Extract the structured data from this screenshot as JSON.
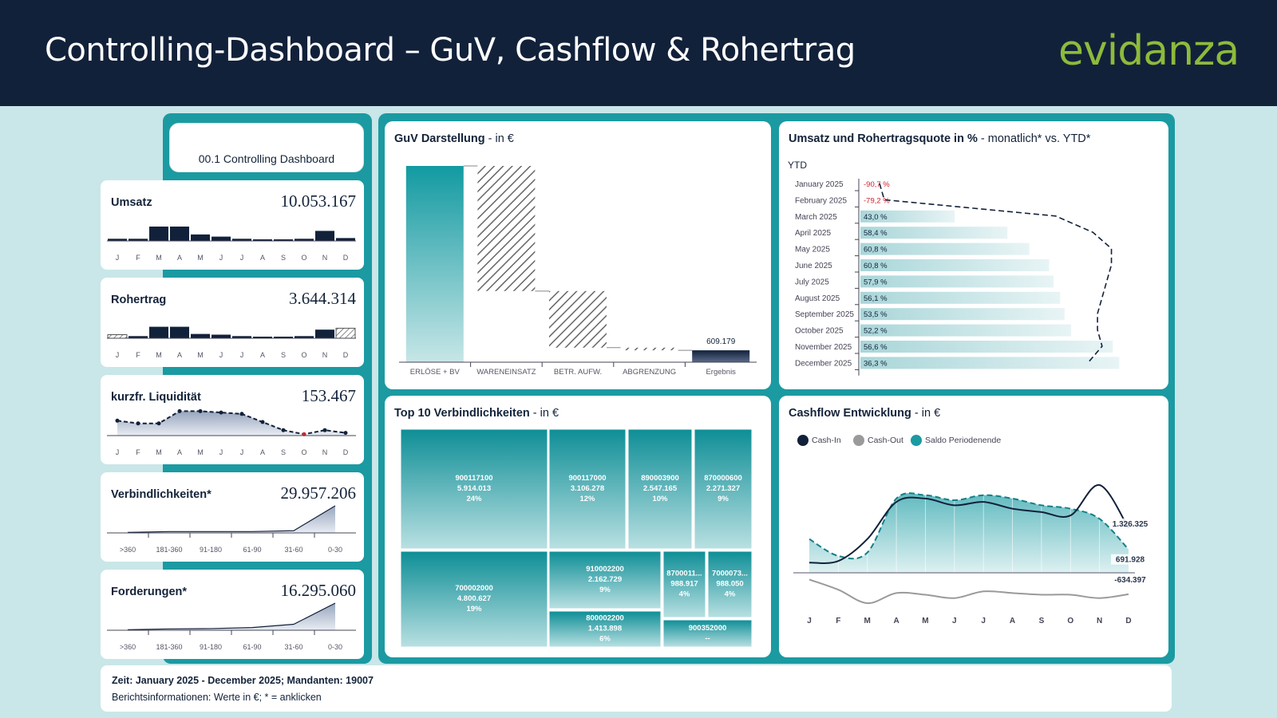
{
  "header": {
    "title": "Controlling-Dashboard – GuV, Cashflow & Rohertrag",
    "logo": "evidanza"
  },
  "nav": {
    "label": "00.1 Controlling Dashboard"
  },
  "colors": {
    "navy": "#12213a",
    "teal": "#1b9aa2",
    "teal_light": "#c9e6e8",
    "negative": "#d0222e",
    "logo_green": "#8dbb3b"
  },
  "kpis": [
    {
      "title": "Umsatz",
      "value": "10.053.167",
      "chart_data": {
        "type": "bar",
        "categories": [
          "J",
          "F",
          "M",
          "A",
          "M",
          "J",
          "J",
          "A",
          "S",
          "O",
          "N",
          "D"
        ],
        "values": [
          0.15,
          0.15,
          1,
          1,
          0.45,
          0.3,
          0.15,
          0.1,
          0.05,
          0.15,
          0.7,
          0.2
        ]
      }
    },
    {
      "title": "Rohertrag",
      "value": "3.644.314",
      "chart_data": {
        "type": "bar",
        "categories": [
          "J",
          "F",
          "M",
          "A",
          "M",
          "J",
          "J",
          "A",
          "S",
          "O",
          "N",
          "D"
        ],
        "values": [
          -0.25,
          0.15,
          0.8,
          0.8,
          0.3,
          0.25,
          0.15,
          0.1,
          0.05,
          0.15,
          0.6,
          -0.7
        ]
      }
    },
    {
      "title": "kurzfr. Liquidität",
      "value": "153.467",
      "chart_data": {
        "type": "area",
        "categories": [
          "J",
          "F",
          "M",
          "A",
          "M",
          "J",
          "J",
          "A",
          "S",
          "O",
          "N",
          "D"
        ],
        "values": [
          0.55,
          0.45,
          0.45,
          0.9,
          0.9,
          0.85,
          0.8,
          0.5,
          0.2,
          0.05,
          0.2,
          0.1
        ]
      }
    },
    {
      "title": "Verbindlichkeiten*",
      "value": "29.957.206",
      "chart_data": {
        "type": "area",
        "categories": [
          ">360",
          "181-360",
          "91-180",
          "61-90",
          "31-60",
          "0-30"
        ],
        "values": [
          0.02,
          0.05,
          0.05,
          0.05,
          0.08,
          1
        ]
      }
    },
    {
      "title": "Forderungen*",
      "value": "16.295.060",
      "chart_data": {
        "type": "area",
        "categories": [
          ">360",
          "181-360",
          "91-180",
          "61-90",
          "31-60",
          "0-30"
        ],
        "values": [
          0.02,
          0.05,
          0.06,
          0.1,
          0.22,
          1
        ]
      }
    }
  ],
  "guv": {
    "title_bold": "GuV Darstellung",
    "title_suffix": " - in €",
    "chart_data": {
      "type": "bar",
      "categories": [
        "ERLÖSE + BV",
        "WARENEINSATZ",
        "BETR. AUFW.",
        "ABGRENZUNG",
        "Ergebnis"
      ],
      "values": [
        10053167,
        -6408853,
        -2900000,
        -135135,
        609179
      ],
      "data_labels": [
        "",
        "",
        "",
        "",
        "609.179"
      ]
    }
  },
  "umsatz": {
    "title_bold": "Umsatz und Rohertragsquote in %",
    "title_suffix": " - monatlich* vs. YTD*",
    "ytd_label": "YTD",
    "chart_data": {
      "type": "bar",
      "categories": [
        "January 2025",
        "February 2025",
        "March 2025",
        "April 2025",
        "May 2025",
        "June 2025",
        "July 2025",
        "August 2025",
        "September 2025",
        "October 2025",
        "November 2025",
        "December 2025"
      ],
      "values": [
        -90.7,
        -79.2,
        43.0,
        58.4,
        60.8,
        60.8,
        57.9,
        56.1,
        53.5,
        52.2,
        56.6,
        36.3
      ],
      "value_labels": [
        "-90,7 %",
        "-79,2 %",
        "43,0 %",
        "58,4 %",
        "60,8 %",
        "60,8 %",
        "57,9 %",
        "56,1 %",
        "53,5 %",
        "52,2 %",
        "56,6 %",
        "36,3 %"
      ],
      "bar_values": [
        0,
        0,
        43.0,
        67.0,
        77.0,
        86.0,
        88.0,
        91.0,
        93.0,
        96.0,
        115.0,
        118.0
      ],
      "ytd_line": [
        2,
        10,
        40,
        48,
        52,
        52,
        51,
        50,
        49,
        49,
        50,
        47
      ]
    }
  },
  "top10": {
    "title_bold": "Top 10 Verbindlichkeiten",
    "title_suffix": " - in €",
    "chart_data": {
      "type": "treemap",
      "items": [
        {
          "id": "900117100",
          "value": "5.914.013",
          "pct": "24%"
        },
        {
          "id": "900117000",
          "value": "3.106.278",
          "pct": "12%"
        },
        {
          "id": "890003900",
          "value": "2.547.165",
          "pct": "10%"
        },
        {
          "id": "870000600",
          "value": "2.271.327",
          "pct": "9%"
        },
        {
          "id": "700002000",
          "value": "4.800.627",
          "pct": "19%"
        },
        {
          "id": "910002200",
          "value": "2.162.729",
          "pct": "9%"
        },
        {
          "id": "8700011...",
          "value": "988.917",
          "pct": "4%"
        },
        {
          "id": "7000073...",
          "value": "988.050",
          "pct": "4%"
        },
        {
          "id": "800002200",
          "value": "1.413.898",
          "pct": "6%"
        },
        {
          "id": "900352000",
          "value": "--",
          "pct": ""
        }
      ]
    }
  },
  "cashflow": {
    "title_bold": "Cashflow Entwicklung",
    "title_suffix": " - in €",
    "legend": [
      "Cash-In",
      "Cash-Out",
      "Saldo Periodenende"
    ],
    "chart_data": {
      "type": "line",
      "categories": [
        "J",
        "F",
        "M",
        "A",
        "M",
        "J",
        "J",
        "A",
        "S",
        "O",
        "N",
        "D"
      ],
      "series": [
        {
          "name": "Cash-In",
          "values": [
            300000,
            350000,
            1000000,
            2100000,
            2200000,
            2000000,
            2100000,
            1900000,
            1800000,
            1700000,
            2600000,
            1326325
          ]
        },
        {
          "name": "Cash-Out",
          "values": [
            -200000,
            -500000,
            -900000,
            -600000,
            -650000,
            -750000,
            -550000,
            -600000,
            -650000,
            -650000,
            -750000,
            -634397
          ]
        },
        {
          "name": "Saldo Periodenende",
          "values": [
            1000000,
            500000,
            600000,
            2200000,
            2300000,
            2150000,
            2300000,
            2200000,
            2000000,
            1900000,
            1600000,
            691928
          ]
        }
      ],
      "data_labels": [
        "1.326.325",
        "691.928",
        "-634.397"
      ]
    }
  },
  "footer": {
    "line1": "Zeit: January 2025 - December 2025; Mandanten: 19007",
    "line2": "Berichtsinformationen: Werte in €; * = anklicken"
  }
}
